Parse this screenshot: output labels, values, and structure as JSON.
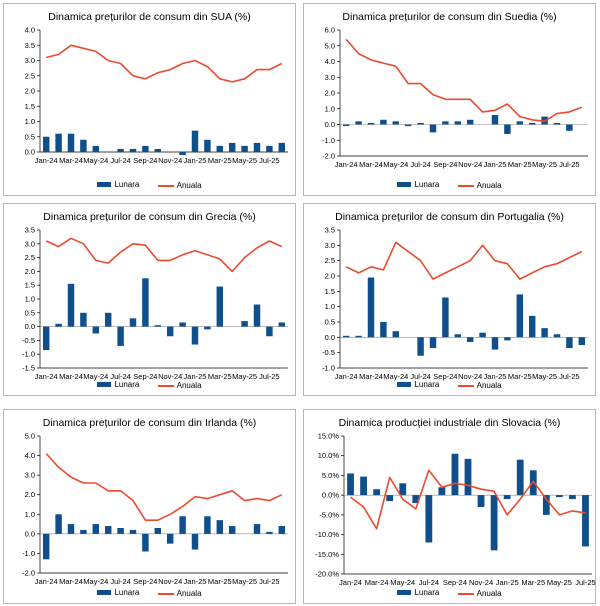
{
  "legend": {
    "monthly": "Lunara",
    "annual": "Anuala"
  },
  "colors": {
    "bar": "#0f4f8c",
    "line": "#ea4b2e",
    "axis": "#000000",
    "zero_line": "#8c8c8c"
  },
  "chart_data": [
    {
      "type": "bar+line",
      "title": "Dinamica prețurilor de consum din SUA (%)",
      "xlabel": "",
      "ylabel": "",
      "ylim": [
        0,
        4
      ],
      "y_ticks": [
        "0.0",
        "0.5",
        "1.0",
        "1.5",
        "2.0",
        "2.5",
        "3.0",
        "3.5",
        "4.0"
      ],
      "y_tick_values": [
        0,
        0.5,
        1,
        1.5,
        2,
        2.5,
        3,
        3.5,
        4
      ],
      "categories": [
        "Jan-24",
        "Feb-24",
        "Mar-24",
        "Apr-24",
        "May-24",
        "Jun-24",
        "Jul-24",
        "Aug-24",
        "Sep-24",
        "Oct-24",
        "Nov-24",
        "Dec-24",
        "Jan-25",
        "Feb-25",
        "Mar-25",
        "Apr-25",
        "May-25",
        "Jun-25",
        "Jul-25",
        "Aug-25"
      ],
      "x_tick_labels": [
        "Jan-24",
        "Mar-24",
        "May-24",
        "Jul-24",
        "Sep-24",
        "Nov-24",
        "Jan-25",
        "Mar-25",
        "May-25",
        "Jul-25"
      ],
      "series": [
        {
          "name": "Lunara",
          "kind": "bar",
          "values": [
            0.5,
            0.6,
            0.6,
            0.4,
            0.2,
            0.0,
            0.1,
            0.1,
            0.2,
            0.1,
            0.0,
            -0.1,
            0.7,
            0.4,
            0.2,
            0.3,
            0.2,
            0.3,
            0.2,
            0.3
          ]
        },
        {
          "name": "Anuala",
          "kind": "line",
          "values": [
            3.1,
            3.2,
            3.5,
            3.4,
            3.3,
            3.0,
            2.9,
            2.5,
            2.4,
            2.6,
            2.7,
            2.9,
            3.0,
            2.8,
            2.4,
            2.3,
            2.4,
            2.7,
            2.7,
            2.9
          ]
        }
      ]
    },
    {
      "type": "bar+line",
      "title": "Dinamica prețurilor de consum din Suedia (%)",
      "xlabel": "",
      "ylabel": "",
      "ylim": [
        -2,
        6
      ],
      "y_ticks": [
        "-2.0",
        "-1.0",
        "0.0",
        "1.0",
        "2.0",
        "3.0",
        "4.0",
        "5.0",
        "6.0"
      ],
      "y_tick_values": [
        -2,
        -1,
        0,
        1,
        2,
        3,
        4,
        5,
        6
      ],
      "categories": [
        "Jan-24",
        "Feb-24",
        "Mar-24",
        "Apr-24",
        "May-24",
        "Jun-24",
        "Jul-24",
        "Aug-24",
        "Sep-24",
        "Oct-24",
        "Nov-24",
        "Dec-24",
        "Jan-25",
        "Feb-25",
        "Mar-25",
        "Apr-25",
        "May-25",
        "Jun-25",
        "Jul-25",
        "Aug-25"
      ],
      "x_tick_labels": [
        "Jan-24",
        "Mar-24",
        "May-24",
        "Jul-24",
        "Sep-24",
        "Nov-24",
        "Jan-25",
        "Mar-25",
        "May-25",
        "Jul-25"
      ],
      "series": [
        {
          "name": "Lunara",
          "kind": "bar",
          "values": [
            -0.1,
            0.2,
            0.1,
            0.3,
            0.2,
            -0.1,
            0.1,
            -0.5,
            0.2,
            0.2,
            0.3,
            0.0,
            0.6,
            -0.6,
            0.2,
            0.1,
            0.5,
            0.1,
            -0.4,
            0.0
          ]
        },
        {
          "name": "Anuala",
          "kind": "line",
          "values": [
            5.4,
            4.5,
            4.1,
            3.9,
            3.7,
            2.6,
            2.6,
            1.9,
            1.6,
            1.6,
            1.6,
            0.8,
            0.9,
            1.3,
            0.5,
            0.3,
            0.2,
            0.7,
            0.8,
            1.1
          ]
        }
      ]
    },
    {
      "type": "bar+line",
      "title": "Dinamica prețurilor de consum din Grecia (%)",
      "xlabel": "",
      "ylabel": "",
      "ylim": [
        -1.5,
        3.5
      ],
      "y_ticks": [
        "-1.5",
        "-1.0",
        "-0.5",
        "0.0",
        "0.5",
        "1.0",
        "1.5",
        "2.0",
        "2.5",
        "3.0",
        "3.5"
      ],
      "y_tick_values": [
        -1.5,
        -1,
        -0.5,
        0,
        0.5,
        1,
        1.5,
        2,
        2.5,
        3,
        3.5
      ],
      "categories": [
        "Jan-24",
        "Feb-24",
        "Mar-24",
        "Apr-24",
        "May-24",
        "Jun-24",
        "Jul-24",
        "Aug-24",
        "Sep-24",
        "Oct-24",
        "Nov-24",
        "Dec-24",
        "Jan-25",
        "Feb-25",
        "Mar-25",
        "Apr-25",
        "May-25",
        "Jun-25",
        "Jul-25",
        "Aug-25"
      ],
      "x_tick_labels": [
        "Jan-24",
        "Mar-24",
        "May-24",
        "Jul-24",
        "Sep-24",
        "Nov-24",
        "Jan-25",
        "Mar-25",
        "May-25",
        "Jul-25"
      ],
      "series": [
        {
          "name": "Lunara",
          "kind": "bar",
          "values": [
            -0.85,
            0.1,
            1.55,
            0.5,
            -0.25,
            0.5,
            -0.7,
            0.3,
            1.75,
            0.05,
            -0.35,
            0.15,
            -0.65,
            -0.1,
            1.45,
            0.0,
            0.2,
            0.8,
            -0.35,
            0.15
          ]
        },
        {
          "name": "Anuala",
          "kind": "line",
          "values": [
            3.1,
            2.9,
            3.2,
            3.0,
            2.4,
            2.3,
            2.7,
            3.0,
            2.95,
            2.4,
            2.4,
            2.6,
            2.75,
            2.6,
            2.45,
            2.0,
            2.5,
            2.85,
            3.1,
            2.9
          ]
        }
      ]
    },
    {
      "type": "bar+line",
      "title": "Dinamica prețurilor de consum din Portugalia (%)",
      "xlabel": "",
      "ylabel": "",
      "ylim": [
        -1,
        3.5
      ],
      "y_ticks": [
        "-1.0",
        "-0.5",
        "0.0",
        "0.5",
        "1.0",
        "1.5",
        "2.0",
        "2.5",
        "3.0",
        "3.5"
      ],
      "y_tick_values": [
        -1,
        -0.5,
        0,
        0.5,
        1,
        1.5,
        2,
        2.5,
        3,
        3.5
      ],
      "categories": [
        "Jan-24",
        "Feb-24",
        "Mar-24",
        "Apr-24",
        "May-24",
        "Jun-24",
        "Jul-24",
        "Aug-24",
        "Sep-24",
        "Oct-24",
        "Nov-24",
        "Dec-24",
        "Jan-25",
        "Feb-25",
        "Mar-25",
        "Apr-25",
        "May-25",
        "Jun-25",
        "Jul-25",
        "Aug-25"
      ],
      "x_tick_labels": [
        "Jan-24",
        "Mar-24",
        "May-24",
        "Jul-24",
        "Sep-24",
        "Nov-24",
        "Jan-25",
        "Mar-25",
        "May-25",
        "Jul-25"
      ],
      "series": [
        {
          "name": "Lunara",
          "kind": "bar",
          "values": [
            0.05,
            0.05,
            1.95,
            0.5,
            0.2,
            0.0,
            -0.6,
            -0.35,
            1.3,
            0.1,
            -0.15,
            0.15,
            -0.4,
            -0.1,
            1.4,
            0.7,
            0.3,
            0.1,
            -0.35,
            -0.25
          ]
        },
        {
          "name": "Anuala",
          "kind": "line",
          "values": [
            2.3,
            2.1,
            2.3,
            2.2,
            3.1,
            2.8,
            2.5,
            1.9,
            2.1,
            2.3,
            2.5,
            3.0,
            2.5,
            2.4,
            1.9,
            2.1,
            2.3,
            2.4,
            2.6,
            2.8
          ]
        }
      ]
    },
    {
      "type": "bar+line",
      "title": "Dinamica prețurilor de consum din Irlanda (%)",
      "xlabel": "",
      "ylabel": "",
      "ylim": [
        -2,
        5
      ],
      "y_ticks": [
        "-2.0",
        "-1.0",
        "0.0",
        "1.0",
        "2.0",
        "3.0",
        "4.0",
        "5.0"
      ],
      "y_tick_values": [
        -2,
        -1,
        0,
        1,
        2,
        3,
        4,
        5
      ],
      "categories": [
        "Jan-24",
        "Feb-24",
        "Mar-24",
        "Apr-24",
        "May-24",
        "Jun-24",
        "Jul-24",
        "Aug-24",
        "Sep-24",
        "Oct-24",
        "Nov-24",
        "Dec-24",
        "Jan-25",
        "Feb-25",
        "Mar-25",
        "Apr-25",
        "May-25",
        "Jun-25",
        "Jul-25",
        "Aug-25"
      ],
      "x_tick_labels": [
        "Jan-24",
        "Mar-24",
        "May-24",
        "Jul-24",
        "Sep-24",
        "Nov-24",
        "Jan-25",
        "Mar-25",
        "May-25",
        "Jul-25"
      ],
      "series": [
        {
          "name": "Lunara",
          "kind": "bar",
          "values": [
            -1.3,
            1.0,
            0.5,
            0.2,
            0.5,
            0.4,
            0.3,
            0.2,
            -0.9,
            0.3,
            -0.5,
            0.9,
            -0.8,
            0.9,
            0.7,
            0.4,
            0.0,
            0.5,
            0.1,
            0.4
          ]
        },
        {
          "name": "Anuala",
          "kind": "line",
          "values": [
            4.1,
            3.4,
            2.9,
            2.6,
            2.6,
            2.2,
            2.2,
            1.7,
            0.7,
            0.7,
            1.0,
            1.4,
            1.9,
            1.8,
            2.0,
            2.2,
            1.7,
            1.8,
            1.7,
            2.0
          ]
        }
      ]
    },
    {
      "type": "bar+line",
      "title": "Dinamica producției industriale din Slovacia (%)",
      "xlabel": "",
      "ylabel": "",
      "ylim": [
        -20,
        15
      ],
      "y_ticks": [
        "-20.0%",
        "-15.0%",
        "-10.0%",
        "-5.0%",
        "0.0%",
        "5.0%",
        "10.0%",
        "15.0%"
      ],
      "y_tick_values": [
        -20,
        -15,
        -10,
        -5,
        0,
        5,
        10,
        15
      ],
      "categories": [
        "Jan-24",
        "Feb-24",
        "Mar-24",
        "Apr-24",
        "May-24",
        "Jun-24",
        "Jul-24",
        "Aug-24",
        "Sep-24",
        "Oct-24",
        "Nov-24",
        "Dec-24",
        "Jan-25",
        "Feb-25",
        "Mar-25",
        "Apr-25",
        "May-25",
        "Jun-25",
        "Jul-25"
      ],
      "x_tick_labels": [
        "Jan-24",
        "Mar-24",
        "May-24",
        "Jul-24",
        "Sep-24",
        "Nov-24",
        "Jan-25",
        "Mar-25",
        "May-25",
        "Jul-25"
      ],
      "series": [
        {
          "name": "Lunara",
          "kind": "bar",
          "values": [
            5.5,
            4.7,
            1.5,
            -1.5,
            3.0,
            -2.0,
            -12.0,
            2.0,
            10.5,
            9.2,
            -3.0,
            -14.0,
            -1.0,
            9.0,
            6.3,
            -5.0,
            -0.5,
            -1.0,
            -13.0
          ]
        },
        {
          "name": "Anuala",
          "kind": "line",
          "values": [
            -0.5,
            -3.0,
            -8.5,
            4.5,
            -1.0,
            -3.5,
            6.3,
            2.0,
            3.0,
            2.5,
            1.5,
            1.0,
            -5.0,
            -1.0,
            3.5,
            -1.0,
            -5.0,
            -4.0,
            -4.5
          ]
        }
      ]
    }
  ]
}
